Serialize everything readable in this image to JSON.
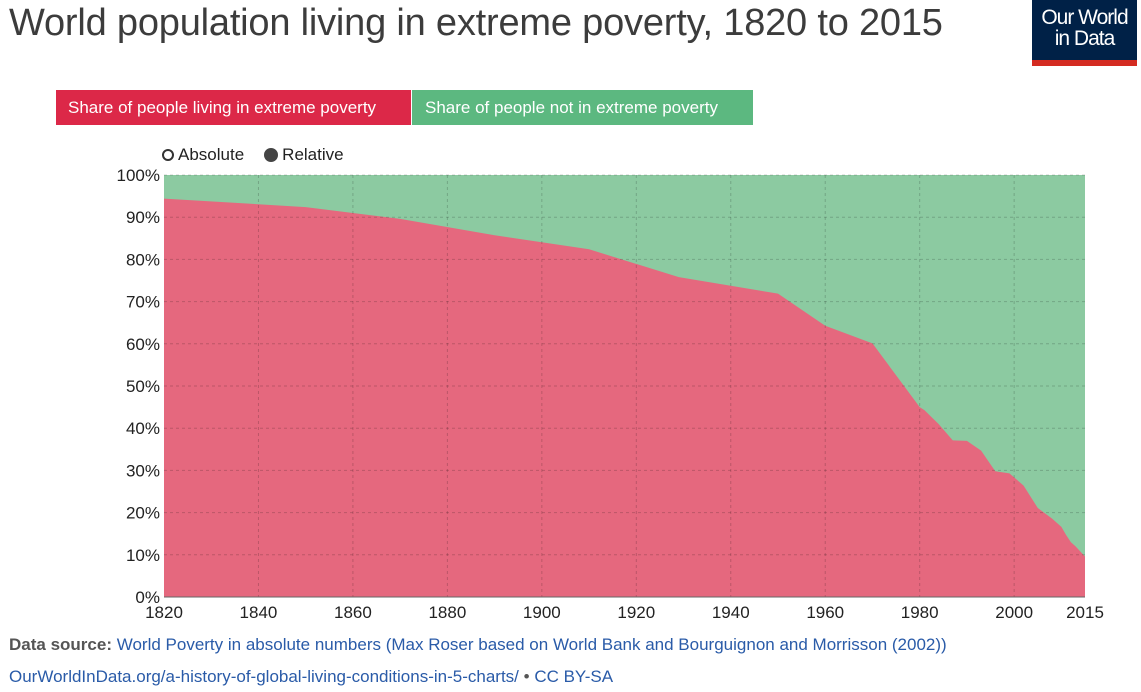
{
  "title": "World population living in extreme poverty, 1820 to 2015",
  "logo": {
    "line1": "Our World",
    "line2": "in Data"
  },
  "legend": {
    "poverty_label": "Share of people living in extreme poverty",
    "not_poverty_label": "Share of people not in extreme poverty"
  },
  "toggle": {
    "absolute_label": "Absolute",
    "relative_label": "Relative",
    "selected": "Relative"
  },
  "colors": {
    "poverty": "#e5687e",
    "not_poverty": "#8ccaa1",
    "poverty_key": "#dc2848",
    "not_poverty_key": "#5cb880",
    "grid": "#bbbbbb",
    "axis_text": "#222222"
  },
  "footer": {
    "source_label": "Data source:",
    "source_text": "World Poverty in absolute numbers (Max Roser based on World Bank and Bourguignon and Morrisson (2002))",
    "url": "OurWorldInData.org/a-history-of-global-living-conditions-in-5-charts/",
    "separator": "•",
    "license": "CC BY-SA"
  },
  "chart_data": {
    "type": "area",
    "stacked": true,
    "normalized": true,
    "title": "World population living in extreme poverty, 1820 to 2015",
    "xlabel": "",
    "ylabel": "",
    "xlim": [
      1820,
      2015
    ],
    "ylim": [
      0,
      100
    ],
    "x_ticks": [
      1820,
      1840,
      1860,
      1880,
      1900,
      1920,
      1940,
      1960,
      1980,
      2000,
      2015
    ],
    "y_ticks": [
      0,
      10,
      20,
      30,
      40,
      50,
      60,
      70,
      80,
      90,
      100
    ],
    "y_tick_labels": [
      "0%",
      "10%",
      "20%",
      "30%",
      "40%",
      "50%",
      "60%",
      "70%",
      "80%",
      "90%",
      "100%"
    ],
    "grid": true,
    "legend_position": "top-left",
    "x": [
      1820,
      1850,
      1870,
      1890,
      1910,
      1929,
      1950,
      1960,
      1970,
      1980,
      1981,
      1984,
      1987,
      1990,
      1993,
      1996,
      1999,
      2002,
      2005,
      2008,
      2010,
      2011,
      2012,
      2013,
      2015
    ],
    "series": [
      {
        "name": "Share of people living in extreme poverty",
        "values": [
          94.4,
          92.4,
          89.6,
          85.7,
          82.4,
          75.8,
          71.9,
          64.3,
          60.1,
          45.0,
          44.3,
          41.0,
          37.1,
          37.0,
          34.7,
          29.8,
          29.3,
          26.4,
          21.1,
          18.6,
          16.6,
          14.7,
          13.0,
          12.0,
          9.6
        ]
      },
      {
        "name": "Share of people not in extreme poverty",
        "values": [
          5.6,
          7.6,
          10.4,
          14.3,
          17.6,
          24.2,
          28.1,
          35.7,
          39.9,
          55.0,
          55.7,
          59.0,
          62.9,
          63.0,
          65.3,
          70.2,
          70.7,
          73.6,
          78.9,
          81.4,
          83.4,
          85.3,
          87.0,
          88.0,
          90.4
        ]
      }
    ]
  }
}
